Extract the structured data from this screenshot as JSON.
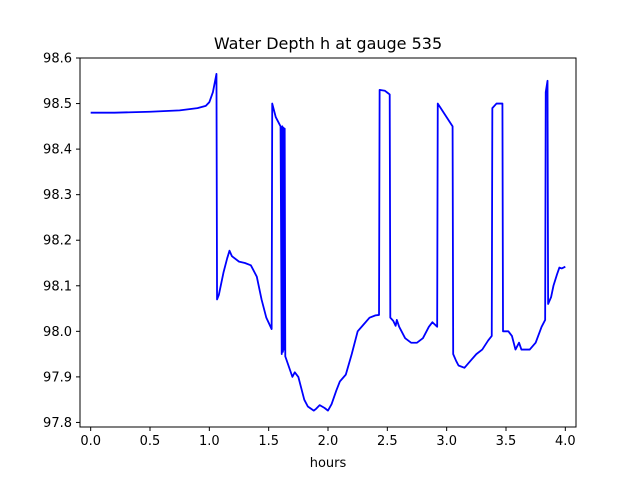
{
  "chart_data": {
    "type": "line",
    "title": "Water Depth h at gauge 535",
    "xlabel": "hours",
    "ylabel": "",
    "xlim": [
      -0.09,
      4.09
    ],
    "ylim": [
      97.79,
      98.6
    ],
    "xticks": [
      0.0,
      0.5,
      1.0,
      1.5,
      2.0,
      2.5,
      3.0,
      3.5,
      4.0
    ],
    "xtick_labels": [
      "0.0",
      "0.5",
      "1.0",
      "1.5",
      "2.0",
      "2.5",
      "3.0",
      "3.5",
      "4.0"
    ],
    "yticks": [
      97.8,
      97.9,
      98.0,
      98.1,
      98.2,
      98.3,
      98.4,
      98.5,
      98.6
    ],
    "ytick_labels": [
      "97.8",
      "97.9",
      "98.0",
      "98.1",
      "98.2",
      "98.3",
      "98.4",
      "98.5",
      "98.6"
    ],
    "grid": false,
    "series": [
      {
        "color": "#0000ff",
        "points": [
          [
            0.0,
            98.48
          ],
          [
            0.2,
            98.48
          ],
          [
            0.5,
            98.482
          ],
          [
            0.75,
            98.485
          ],
          [
            0.9,
            98.49
          ],
          [
            0.97,
            98.495
          ],
          [
            1.0,
            98.503
          ],
          [
            1.03,
            98.525
          ],
          [
            1.06,
            98.565
          ],
          [
            1.065,
            98.07
          ],
          [
            1.08,
            98.08
          ],
          [
            1.12,
            98.13
          ],
          [
            1.15,
            98.16
          ],
          [
            1.17,
            98.177
          ],
          [
            1.19,
            98.165
          ],
          [
            1.25,
            98.153
          ],
          [
            1.3,
            98.15
          ],
          [
            1.35,
            98.145
          ],
          [
            1.4,
            98.12
          ],
          [
            1.44,
            98.07
          ],
          [
            1.48,
            98.03
          ],
          [
            1.525,
            98.005
          ],
          [
            1.53,
            98.5
          ],
          [
            1.56,
            98.47
          ],
          [
            1.6,
            98.45
          ],
          [
            1.61,
            97.95
          ],
          [
            1.615,
            98.45
          ],
          [
            1.62,
            97.955
          ],
          [
            1.625,
            98.447
          ],
          [
            1.63,
            97.96
          ],
          [
            1.635,
            98.445
          ],
          [
            1.64,
            97.945
          ],
          [
            1.7,
            97.9
          ],
          [
            1.72,
            97.91
          ],
          [
            1.75,
            97.9
          ],
          [
            1.78,
            97.87
          ],
          [
            1.8,
            97.85
          ],
          [
            1.83,
            97.835
          ],
          [
            1.88,
            97.826
          ],
          [
            1.9,
            97.83
          ],
          [
            1.93,
            97.838
          ],
          [
            1.97,
            97.832
          ],
          [
            2.0,
            97.826
          ],
          [
            2.03,
            97.84
          ],
          [
            2.07,
            97.87
          ],
          [
            2.1,
            97.89
          ],
          [
            2.15,
            97.905
          ],
          [
            2.2,
            97.95
          ],
          [
            2.25,
            98.0
          ],
          [
            2.3,
            98.015
          ],
          [
            2.35,
            98.03
          ],
          [
            2.4,
            98.035
          ],
          [
            2.43,
            98.036
          ],
          [
            2.435,
            98.53
          ],
          [
            2.48,
            98.528
          ],
          [
            2.5,
            98.524
          ],
          [
            2.52,
            98.52
          ],
          [
            2.525,
            98.03
          ],
          [
            2.55,
            98.023
          ],
          [
            2.57,
            98.012
          ],
          [
            2.58,
            98.025
          ],
          [
            2.6,
            98.01
          ],
          [
            2.65,
            97.985
          ],
          [
            2.7,
            97.975
          ],
          [
            2.75,
            97.975
          ],
          [
            2.8,
            97.985
          ],
          [
            2.85,
            98.01
          ],
          [
            2.88,
            98.02
          ],
          [
            2.92,
            98.01
          ],
          [
            2.925,
            98.5
          ],
          [
            2.95,
            98.49
          ],
          [
            3.0,
            98.47
          ],
          [
            3.05,
            98.45
          ],
          [
            3.055,
            97.95
          ],
          [
            3.08,
            97.935
          ],
          [
            3.1,
            97.925
          ],
          [
            3.15,
            97.92
          ],
          [
            3.2,
            97.935
          ],
          [
            3.25,
            97.95
          ],
          [
            3.3,
            97.96
          ],
          [
            3.35,
            97.98
          ],
          [
            3.38,
            97.99
          ],
          [
            3.385,
            98.49
          ],
          [
            3.42,
            98.5
          ],
          [
            3.45,
            98.5
          ],
          [
            3.47,
            98.5
          ],
          [
            3.475,
            98.0
          ],
          [
            3.52,
            98.0
          ],
          [
            3.55,
            97.99
          ],
          [
            3.58,
            97.96
          ],
          [
            3.61,
            97.975
          ],
          [
            3.63,
            97.96
          ],
          [
            3.7,
            97.96
          ],
          [
            3.75,
            97.975
          ],
          [
            3.8,
            98.01
          ],
          [
            3.83,
            98.025
          ],
          [
            3.835,
            98.525
          ],
          [
            3.85,
            98.55
          ],
          [
            3.855,
            98.06
          ],
          [
            3.88,
            98.075
          ],
          [
            3.9,
            98.1
          ],
          [
            3.93,
            98.125
          ],
          [
            3.95,
            98.14
          ],
          [
            3.97,
            98.138
          ],
          [
            4.0,
            98.142
          ]
        ]
      }
    ]
  }
}
